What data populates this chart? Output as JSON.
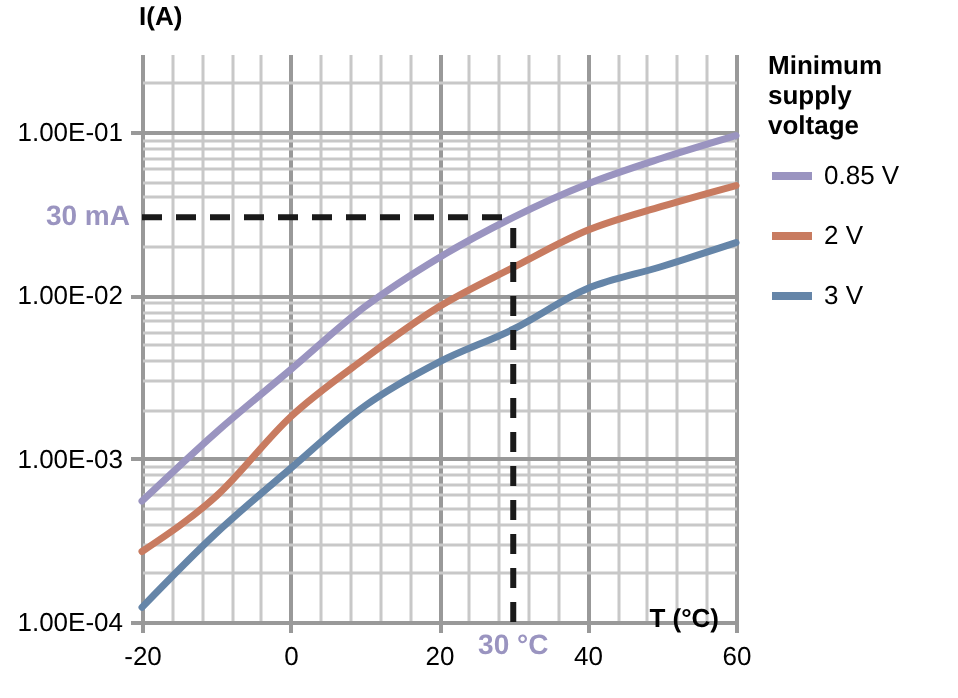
{
  "chart_data": {
    "type": "line",
    "xlabel": "T (°C)",
    "ylabel": "I(A)",
    "legend_title": "Minimum supply voltage",
    "legend": "right",
    "log": "y",
    "grid": true,
    "line_style": "solid",
    "marker": "none",
    "x": [
      -20,
      -10,
      0,
      10,
      20,
      30,
      40,
      50,
      60
    ],
    "xlim": [
      -20,
      60
    ],
    "xticks": [
      -20,
      0,
      20,
      40,
      60
    ],
    "ylim": [
      0.0001,
      0.3
    ],
    "yticks": [
      {
        "value": 0.0001,
        "label": "1.00E-04"
      },
      {
        "value": 0.001,
        "label": "1.00E-03"
      },
      {
        "value": 0.01,
        "label": "1.00E-02"
      },
      {
        "value": 0.1,
        "label": "1.00E-01"
      }
    ],
    "series": [
      {
        "name": "0.85 V",
        "color": "#9a94c0",
        "values": [
          0.00055,
          0.00145,
          0.0035,
          0.0085,
          0.017,
          0.03,
          0.048,
          0.069,
          0.095
        ]
      },
      {
        "name": "2 V",
        "color": "#c87b60",
        "values": [
          0.00027,
          0.00059,
          0.0018,
          0.0041,
          0.0085,
          0.0148,
          0.025,
          0.035,
          0.047
        ]
      },
      {
        "name": "3 V",
        "color": "#6585a8",
        "values": [
          0.000123,
          0.00035,
          0.00087,
          0.0021,
          0.0039,
          0.0062,
          0.011,
          0.015,
          0.021
        ]
      }
    ],
    "ref_lines": [
      {
        "axis": "y",
        "value": 0.03,
        "label": "30 mA",
        "line_style": "dashed"
      },
      {
        "axis": "x",
        "value": 30,
        "label": "30 °C",
        "line_style": "dashed"
      }
    ]
  }
}
